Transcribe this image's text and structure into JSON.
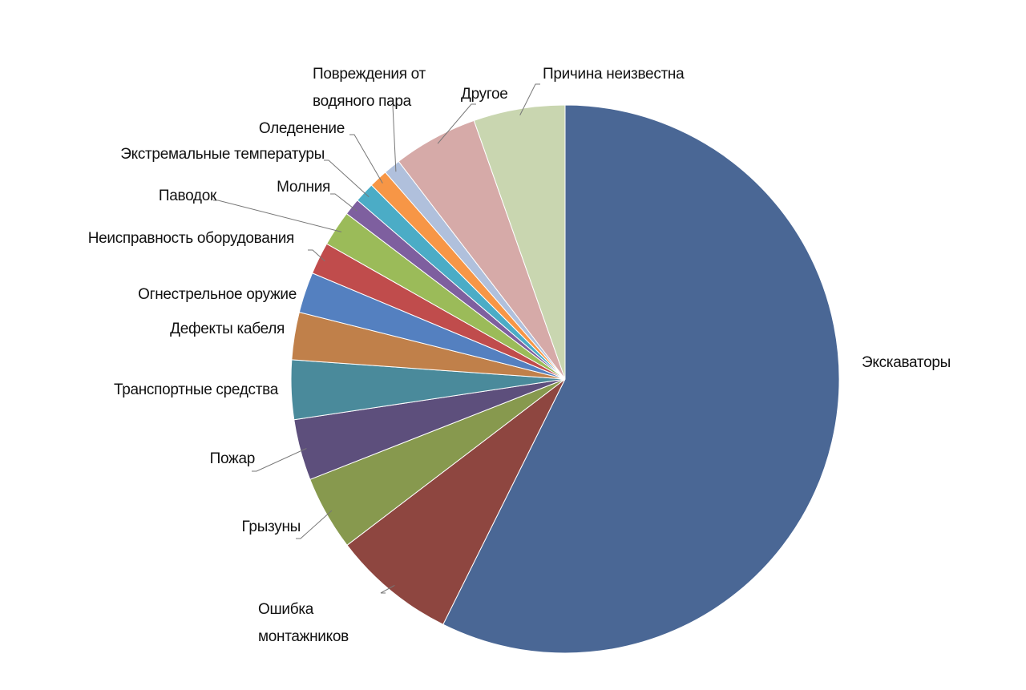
{
  "chart_data": {
    "type": "pie",
    "categories": [
      "Экскаваторы",
      "Ошибка монтажников",
      "Грызуны",
      "Пожар",
      "Транспортные средства",
      "Дефекты кабеля",
      "Огнестрельное оружие",
      "Неисправность оборудования",
      "Паводок",
      "Молния",
      "Экстремальные  температуры",
      "Оледенение",
      "Повреждения от водяного пара",
      "Другое",
      "Причина неизвестна"
    ],
    "values": [
      57.4,
      7.3,
      4.4,
      3.6,
      3.5,
      2.8,
      2.4,
      1.9,
      2.1,
      1.0,
      1.2,
      1.1,
      1.0,
      5.0,
      5.4
    ],
    "colors": [
      "#4a6795",
      "#8e4640",
      "#87994e",
      "#5d4f7c",
      "#4a8a9b",
      "#c0804a",
      "#5480c0",
      "#c04c4c",
      "#9bbb59",
      "#7e5f9f",
      "#4bacc6",
      "#f79646",
      "#b0c0dc",
      "#d6aaa8",
      "#c9d6b0"
    ]
  }
}
